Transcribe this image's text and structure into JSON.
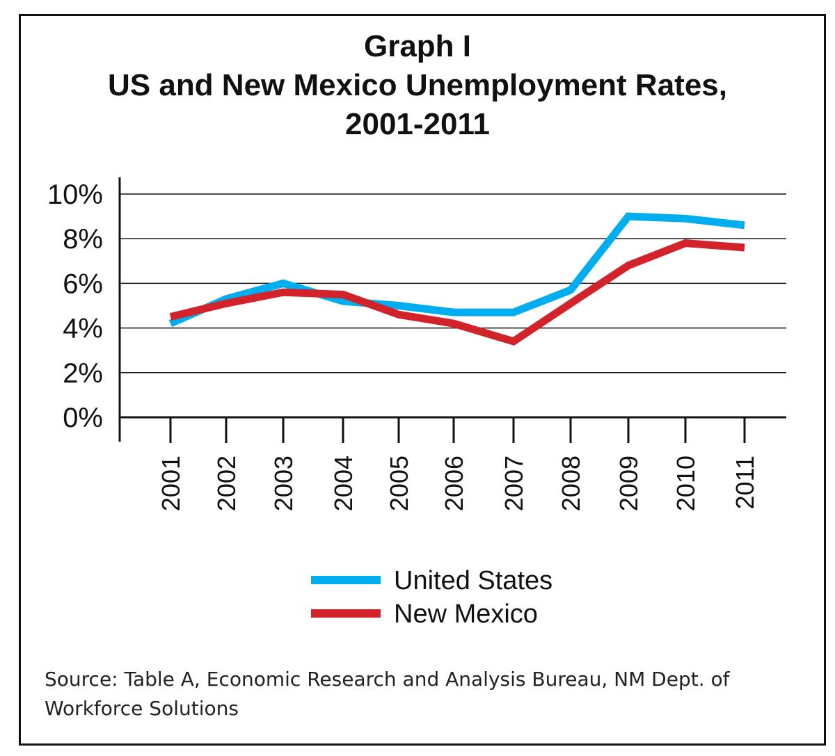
{
  "chart_data": {
    "type": "line",
    "title": "Graph I",
    "subtitle_line1": "US and New Mexico Unemployment Rates,",
    "subtitle_line2": "2001-2011",
    "categories": [
      "2001",
      "2002",
      "2003",
      "2004",
      "2005",
      "2006",
      "2007",
      "2008",
      "2009",
      "2010",
      "2011"
    ],
    "yticks": [
      "0%",
      "2%",
      "4%",
      "6%",
      "8%",
      "10%"
    ],
    "ylim": [
      0,
      10
    ],
    "grid": true,
    "legend_placement": "bottom",
    "series": [
      {
        "name": "United States",
        "color": "#00AEEF",
        "values": [
          4.2,
          5.3,
          6.0,
          5.2,
          5.0,
          4.7,
          4.7,
          5.7,
          9.0,
          8.9,
          8.6
        ]
      },
      {
        "name": "New Mexico",
        "color": "#D2232A",
        "values": [
          4.5,
          5.1,
          5.6,
          5.5,
          4.6,
          4.2,
          3.4,
          5.1,
          6.8,
          7.8,
          7.6
        ]
      }
    ]
  },
  "source": "Source: Table A, Economic Research and Analysis Bureau, NM Dept. of Workforce Solutions"
}
